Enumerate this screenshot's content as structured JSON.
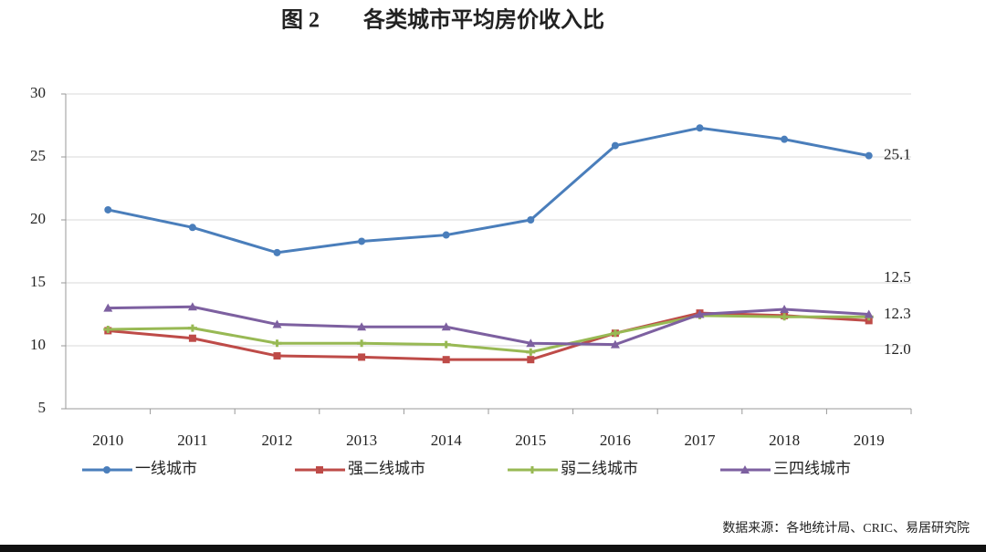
{
  "chart_data": {
    "type": "line",
    "title": "图 2　　各类城市平均房价收入比",
    "categories": [
      "2010",
      "2011",
      "2012",
      "2013",
      "2014",
      "2015",
      "2016",
      "2017",
      "2018",
      "2019"
    ],
    "series": [
      {
        "name": "一线城市",
        "color": "#4a7ebb",
        "values": [
          20.8,
          19.4,
          17.4,
          18.3,
          18.8,
          20.0,
          25.9,
          27.3,
          26.4,
          25.1
        ],
        "value_labels": [
          null,
          null,
          null,
          null,
          null,
          null,
          null,
          null,
          null,
          "25.1"
        ]
      },
      {
        "name": "强二线城市",
        "color": "#be4b48",
        "values": [
          11.2,
          10.6,
          9.2,
          9.1,
          8.9,
          8.9,
          11.0,
          12.6,
          12.4,
          12.0
        ],
        "value_labels": [
          null,
          null,
          null,
          null,
          null,
          null,
          null,
          null,
          null,
          "12.0"
        ]
      },
      {
        "name": "弱二线城市",
        "color": "#98b954",
        "values": [
          11.3,
          11.4,
          10.2,
          10.2,
          10.1,
          9.5,
          11.0,
          12.4,
          12.3,
          12.3
        ],
        "value_labels": [
          null,
          null,
          null,
          null,
          null,
          null,
          null,
          null,
          null,
          "12.3"
        ]
      },
      {
        "name": "三四线城市",
        "color": "#7d60a0",
        "values": [
          13.0,
          13.1,
          11.7,
          11.5,
          11.5,
          10.2,
          10.1,
          12.5,
          12.9,
          12.5
        ],
        "value_labels": [
          null,
          null,
          null,
          null,
          null,
          null,
          null,
          null,
          null,
          "12.5"
        ]
      }
    ],
    "ylim": [
      5,
      30
    ],
    "yticks": [
      5,
      10,
      15,
      20,
      25,
      30
    ],
    "grid": true,
    "source": "数据来源：各地统计局、CRIC、易居研究院"
  }
}
